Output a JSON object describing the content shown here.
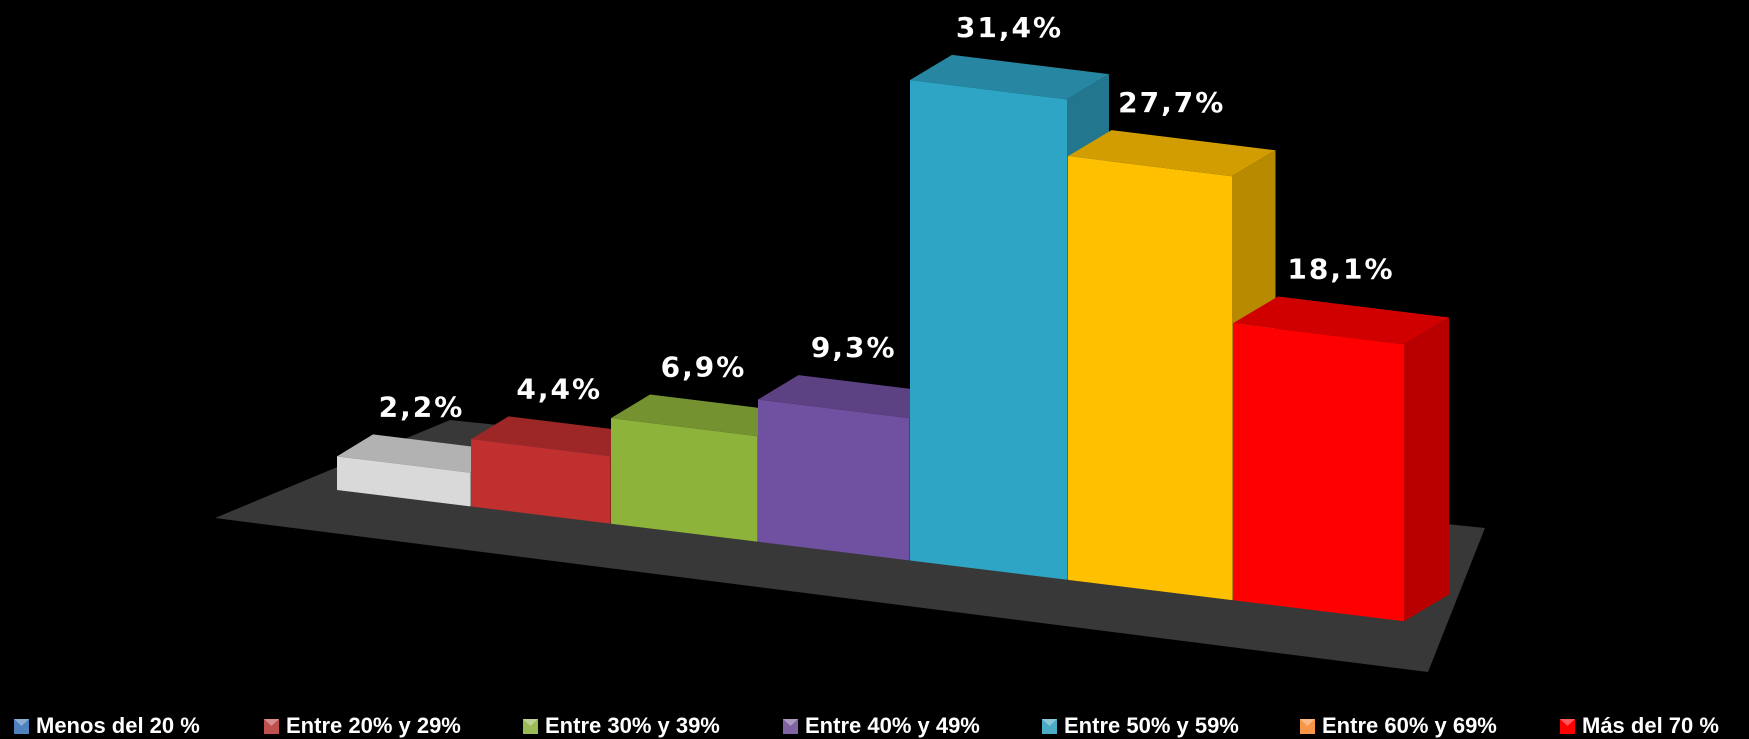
{
  "chart_data": {
    "type": "bar",
    "series": [
      {
        "name": "Menos del 20 %",
        "color": "#d9d9d9",
        "legend_color": "#4f81bd",
        "values": [
          2.2
        ],
        "value_labels": [
          "2,2%"
        ]
      },
      {
        "name": "Entre 20% y 29%",
        "color": "#c0302f",
        "legend_color": "#c0504d",
        "values": [
          4.4
        ],
        "value_labels": [
          "4,4%"
        ]
      },
      {
        "name": "Entre 30% y 39%",
        "color": "#8db33a",
        "legend_color": "#9bbb59",
        "values": [
          6.9
        ],
        "value_labels": [
          "6,9%"
        ]
      },
      {
        "name": "Entre 40% y 49%",
        "color": "#7050a0",
        "legend_color": "#8064a2",
        "values": [
          9.3
        ],
        "value_labels": [
          "9,3%"
        ]
      },
      {
        "name": "Entre 50% y 59%",
        "color": "#2fa5c5",
        "legend_color": "#4bacc6",
        "values": [
          31.4
        ],
        "value_labels": [
          "31,4%"
        ]
      },
      {
        "name": "Entre 60% y 69%",
        "color": "#ffc000",
        "legend_color": "#f79646",
        "values": [
          27.7
        ],
        "value_labels": [
          "27,7%"
        ]
      },
      {
        "name": "Más del 70 %",
        "color": "#ff0000",
        "legend_color": "#ff0000",
        "values": [
          18.1
        ],
        "value_labels": [
          "18,1%"
        ]
      }
    ],
    "legend": "bottom"
  }
}
